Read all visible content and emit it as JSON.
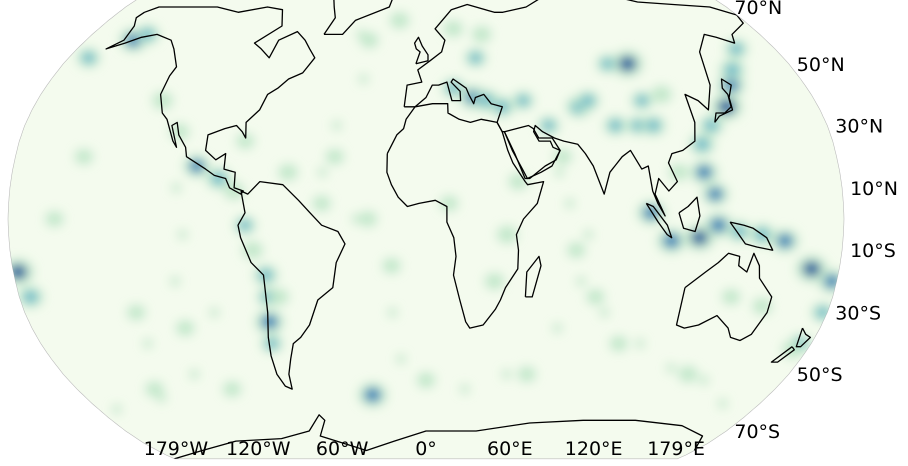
{
  "colors": {
    "ocean_background": "#f4fbee",
    "low_density": "#bfe6c8",
    "mid_density": "#5fb4c9",
    "high_density": "#1c72b4",
    "peak_density": "#0a4f96",
    "coastline": "#000000"
  },
  "map": {
    "projection": "robinson",
    "central_longitude": 0,
    "colormap": "GnBu",
    "field": "kernel density heatmap",
    "coastlines": true,
    "lon_ticks": [
      "179°W",
      "120°W",
      "60°W",
      "0°",
      "60°E",
      "120°E",
      "179°E"
    ],
    "lat_ticks": [
      "70°N",
      "50°N",
      "30°N",
      "10°N",
      "10°S",
      "30°S",
      "50°S",
      "70°S"
    ],
    "lon_tick_values": [
      -179,
      -120,
      -60,
      0,
      60,
      120,
      179
    ],
    "lat_tick_values": [
      70,
      50,
      30,
      10,
      -10,
      -30,
      -50,
      -70
    ],
    "hotspots": [
      {
        "lon": 138,
        "lat": 36,
        "level": 0.85
      },
      {
        "lon": 145,
        "lat": 43,
        "level": 0.7
      },
      {
        "lon": 150,
        "lat": 48,
        "level": 0.6
      },
      {
        "lon": 128,
        "lat": 30,
        "level": 0.55
      },
      {
        "lon": 122,
        "lat": 24,
        "level": 0.6
      },
      {
        "lon": 121,
        "lat": 15,
        "level": 0.7
      },
      {
        "lon": 125,
        "lat": 8,
        "level": 0.65
      },
      {
        "lon": 126,
        "lat": -2,
        "level": 0.75
      },
      {
        "lon": 118,
        "lat": -6,
        "level": 0.8
      },
      {
        "lon": 106,
        "lat": -7,
        "level": 0.75
      },
      {
        "lon": 97,
        "lat": 2,
        "level": 0.7
      },
      {
        "lon": 135,
        "lat": -4,
        "level": 0.55
      },
      {
        "lon": 145,
        "lat": -5,
        "level": 0.6
      },
      {
        "lon": 155,
        "lat": -7,
        "level": 0.7
      },
      {
        "lon": 168,
        "lat": -16,
        "level": 0.85
      },
      {
        "lon": 178,
        "lat": -20,
        "level": 0.7
      },
      {
        "lon": 178,
        "lat": -30,
        "level": 0.5
      },
      {
        "lon": 175,
        "lat": -40,
        "level": 0.45
      },
      {
        "lon": -178,
        "lat": -17,
        "level": 0.85
      },
      {
        "lon": -175,
        "lat": -25,
        "level": 0.6
      },
      {
        "lon": -155,
        "lat": 58,
        "level": 0.7
      },
      {
        "lon": -150,
        "lat": 60,
        "level": 0.5
      },
      {
        "lon": -122,
        "lat": 38,
        "level": 0.4
      },
      {
        "lon": -110,
        "lat": 28,
        "level": 0.35
      },
      {
        "lon": -100,
        "lat": 17,
        "level": 0.65
      },
      {
        "lon": -90,
        "lat": 13,
        "level": 0.6
      },
      {
        "lon": -83,
        "lat": 9,
        "level": 0.4
      },
      {
        "lon": -78,
        "lat": -2,
        "level": 0.45
      },
      {
        "lon": -75,
        "lat": -10,
        "level": 0.4
      },
      {
        "lon": -70,
        "lat": -18,
        "level": 0.55
      },
      {
        "lon": -70,
        "lat": -25,
        "level": 0.45
      },
      {
        "lon": -71,
        "lat": -33,
        "level": 0.75
      },
      {
        "lon": -72,
        "lat": -40,
        "level": 0.45
      },
      {
        "lon": -65,
        "lat": -25,
        "level": 0.35
      },
      {
        "lon": -28,
        "lat": -57,
        "level": 0.75
      },
      {
        "lon": 22,
        "lat": 39,
        "level": 0.7
      },
      {
        "lon": 28,
        "lat": 38,
        "level": 0.6
      },
      {
        "lon": 13,
        "lat": 42,
        "level": 0.5
      },
      {
        "lon": 35,
        "lat": 36,
        "level": 0.55
      },
      {
        "lon": 45,
        "lat": 38,
        "level": 0.45
      },
      {
        "lon": 55,
        "lat": 30,
        "level": 0.45
      },
      {
        "lon": 70,
        "lat": 36,
        "level": 0.6
      },
      {
        "lon": 75,
        "lat": 38,
        "level": 0.5
      },
      {
        "lon": 85,
        "lat": 30,
        "level": 0.5
      },
      {
        "lon": 95,
        "lat": 30,
        "level": 0.45
      },
      {
        "lon": 102,
        "lat": 30,
        "level": 0.55
      },
      {
        "lon": 100,
        "lat": 38,
        "level": 0.45
      },
      {
        "lon": 110,
        "lat": 40,
        "level": 0.4
      },
      {
        "lon": 100,
        "lat": 50,
        "level": 0.85
      },
      {
        "lon": 90,
        "lat": 50,
        "level": 0.45
      },
      {
        "lon": 25,
        "lat": 52,
        "level": 0.45
      },
      {
        "lon": 15,
        "lat": 62,
        "level": 0.35
      },
      {
        "lon": 30,
        "lat": 60,
        "level": 0.35
      },
      {
        "lon": -15,
        "lat": 65,
        "level": 0.35
      },
      {
        "lon": -30,
        "lat": 58,
        "level": 0.3
      },
      {
        "lon": -40,
        "lat": 20,
        "level": 0.3
      },
      {
        "lon": -45,
        "lat": 5,
        "level": 0.3
      },
      {
        "lon": -25,
        "lat": 0,
        "level": 0.3
      },
      {
        "lon": -15,
        "lat": -15,
        "level": 0.3
      },
      {
        "lon": 35,
        "lat": -5,
        "level": 0.4
      },
      {
        "lon": 30,
        "lat": -20,
        "level": 0.35
      },
      {
        "lon": 40,
        "lat": 12,
        "level": 0.35
      },
      {
        "lon": 65,
        "lat": -10,
        "level": 0.3
      },
      {
        "lon": 75,
        "lat": -25,
        "level": 0.3
      },
      {
        "lon": 90,
        "lat": -40,
        "level": 0.3
      },
      {
        "lon": 130,
        "lat": -50,
        "level": 0.35
      },
      {
        "lon": 150,
        "lat": -28,
        "level": 0.35
      },
      {
        "lon": 135,
        "lat": -25,
        "level": 0.3
      },
      {
        "lon": -110,
        "lat": -35,
        "level": 0.3
      },
      {
        "lon": -130,
        "lat": -30,
        "level": 0.3
      },
      {
        "lon": -150,
        "lat": 20,
        "level": 0.3
      },
      {
        "lon": -160,
        "lat": 0,
        "level": 0.3
      },
      {
        "lon": -140,
        "lat": -55,
        "level": 0.3
      },
      {
        "lon": -100,
        "lat": -55,
        "level": 0.3
      },
      {
        "lon": 50,
        "lat": -50,
        "level": 0.3
      },
      {
        "lon": 0,
        "lat": -52,
        "level": 0.3
      },
      {
        "lon": -170,
        "lat": 52,
        "level": 0.5
      },
      {
        "lon": 160,
        "lat": 55,
        "level": 0.5
      },
      {
        "lon": 173,
        "lat": -42,
        "level": 0.4
      },
      {
        "lon": -80,
        "lat": 25,
        "level": 0.3
      },
      {
        "lon": -60,
        "lat": 15,
        "level": 0.35
      },
      {
        "lon": 10,
        "lat": 5,
        "level": 0.3
      },
      {
        "lon": 60,
        "lat": 20,
        "level": 0.3
      },
      {
        "lon": 110,
        "lat": 15,
        "level": 0.35
      }
    ],
    "scatter_band_lons": [
      -180,
      -150,
      -120,
      -90,
      -60,
      -30,
      0,
      30,
      60,
      90,
      120,
      150,
      180
    ]
  }
}
